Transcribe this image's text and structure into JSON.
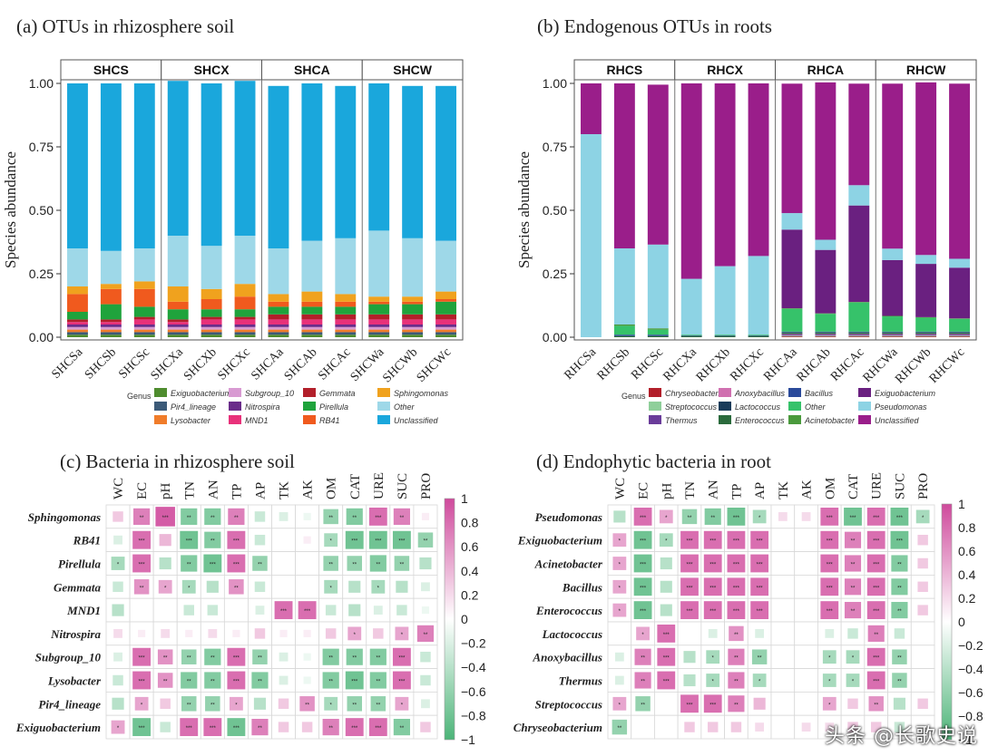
{
  "chart_data": [
    {
      "id": "a",
      "type": "bar",
      "stacked": true,
      "title": "(a) OTUs in rhizosphere soil",
      "ylabel": "Species abundance",
      "ylim": [
        0,
        1
      ],
      "yticks": [
        "0.00",
        "0.25",
        "0.50",
        "0.75",
        "1.00"
      ],
      "groups": [
        "SHCS",
        "SHCX",
        "SHCA",
        "SHCW"
      ],
      "categories": [
        "SHCSa",
        "SHCSb",
        "SHCSc",
        "SHCXa",
        "SHCXb",
        "SHCXc",
        "SHCAa",
        "SHCAb",
        "SHCAc",
        "SHCWa",
        "SHCWb",
        "SHCWc"
      ],
      "legend_title": "Genus",
      "series": [
        {
          "name": "Exiguobacterium",
          "color": "#4e8c2e",
          "values": [
            0.01,
            0.01,
            0.01,
            0.01,
            0.01,
            0.01,
            0.01,
            0.01,
            0.01,
            0.01,
            0.01,
            0.01
          ]
        },
        {
          "name": "Pir4_lineage",
          "color": "#3c5a78",
          "values": [
            0.01,
            0.01,
            0.01,
            0.01,
            0.01,
            0.01,
            0.01,
            0.01,
            0.01,
            0.01,
            0.01,
            0.01
          ]
        },
        {
          "name": "Lysobacter",
          "color": "#f07c2a",
          "values": [
            0.01,
            0.01,
            0.01,
            0.01,
            0.01,
            0.01,
            0.01,
            0.01,
            0.01,
            0.01,
            0.01,
            0.01
          ]
        },
        {
          "name": "Subgroup_10",
          "color": "#d89ad2",
          "values": [
            0.01,
            0.01,
            0.01,
            0.01,
            0.01,
            0.01,
            0.01,
            0.01,
            0.01,
            0.01,
            0.01,
            0.01
          ]
        },
        {
          "name": "Nitrospira",
          "color": "#6a2c8a",
          "values": [
            0.01,
            0.01,
            0.01,
            0.01,
            0.01,
            0.01,
            0.01,
            0.01,
            0.01,
            0.01,
            0.01,
            0.01
          ]
        },
        {
          "name": "MND1",
          "color": "#e8317a",
          "values": [
            0.01,
            0.01,
            0.02,
            0.01,
            0.02,
            0.02,
            0.02,
            0.02,
            0.02,
            0.02,
            0.02,
            0.02
          ]
        },
        {
          "name": "Gemmata",
          "color": "#b21f2a",
          "values": [
            0.01,
            0.01,
            0.01,
            0.01,
            0.01,
            0.01,
            0.02,
            0.02,
            0.02,
            0.02,
            0.02,
            0.02
          ]
        },
        {
          "name": "Pirellula",
          "color": "#1fa33c",
          "values": [
            0.03,
            0.06,
            0.04,
            0.04,
            0.03,
            0.03,
            0.03,
            0.03,
            0.03,
            0.04,
            0.04,
            0.05
          ]
        },
        {
          "name": "RB41",
          "color": "#f05a1e",
          "values": [
            0.07,
            0.06,
            0.07,
            0.03,
            0.04,
            0.05,
            0.02,
            0.02,
            0.02,
            0.01,
            0.01,
            0.01
          ]
        },
        {
          "name": "Sphingomonas",
          "color": "#f0a21e",
          "values": [
            0.03,
            0.02,
            0.03,
            0.06,
            0.04,
            0.05,
            0.03,
            0.04,
            0.03,
            0.02,
            0.02,
            0.03
          ]
        },
        {
          "name": "Other",
          "color": "#9ed8e8",
          "values": [
            0.15,
            0.13,
            0.13,
            0.2,
            0.17,
            0.19,
            0.18,
            0.2,
            0.22,
            0.26,
            0.23,
            0.2
          ]
        },
        {
          "name": "Unclassified",
          "color": "#1aa7dc",
          "values": [
            0.65,
            0.66,
            0.65,
            0.61,
            0.64,
            0.61,
            0.64,
            0.62,
            0.6,
            0.58,
            0.6,
            0.61
          ]
        }
      ]
    },
    {
      "id": "b",
      "type": "bar",
      "stacked": true,
      "title": "(b) Endogenous OTUs in roots",
      "ylabel": "Species abundance",
      "ylim": [
        0,
        1
      ],
      "yticks": [
        "0.00",
        "0.25",
        "0.50",
        "0.75",
        "1.00"
      ],
      "groups": [
        "RHCS",
        "RHCX",
        "RHCA",
        "RHCW"
      ],
      "categories": [
        "RHCSa",
        "RHCSb",
        "RHCSc",
        "RHCXa",
        "RHCXb",
        "RHCXc",
        "RHCAa",
        "RHCAb",
        "RHCAc",
        "RHCWa",
        "RHCWb",
        "RHCWc"
      ],
      "legend_title": "Genus",
      "series": [
        {
          "name": "Chryseobacterium",
          "color": "#b21f2a",
          "values": [
            0,
            0,
            0,
            0,
            0,
            0,
            0.003,
            0.003,
            0.003,
            0.003,
            0.003,
            0.003
          ]
        },
        {
          "name": "Streptococcus",
          "color": "#8fcf9a",
          "values": [
            0,
            0,
            0,
            0,
            0,
            0,
            0.003,
            0.003,
            0.003,
            0.003,
            0.003,
            0.003
          ]
        },
        {
          "name": "Thermus",
          "color": "#6a3c9a",
          "values": [
            0,
            0,
            0,
            0,
            0,
            0,
            0.003,
            0.003,
            0.003,
            0.003,
            0.003,
            0.003
          ]
        },
        {
          "name": "Anoxybacillus",
          "color": "#d070b0",
          "values": [
            0,
            0,
            0,
            0,
            0,
            0,
            0.003,
            0.003,
            0.003,
            0.003,
            0.003,
            0.003
          ]
        },
        {
          "name": "Lactococcus",
          "color": "#1a3c5a",
          "values": [
            0,
            0,
            0,
            0,
            0,
            0,
            0.003,
            0.003,
            0.003,
            0.003,
            0.003,
            0.003
          ]
        },
        {
          "name": "Enterococcus",
          "color": "#2a6a3c",
          "values": [
            0,
            0.005,
            0.005,
            0.005,
            0.005,
            0.005,
            0.004,
            0.004,
            0.004,
            0.004,
            0.004,
            0.004
          ]
        },
        {
          "name": "Bacillus",
          "color": "#2a4a9a",
          "values": [
            0,
            0.005,
            0.005,
            0.002,
            0.002,
            0.002,
            0.003,
            0.003,
            0.003,
            0.003,
            0.003,
            0.003
          ]
        },
        {
          "name": "Other",
          "color": "#36c26a",
          "values": [
            0,
            0.035,
            0.02,
            0.003,
            0.003,
            0.003,
            0.09,
            0.07,
            0.115,
            0.06,
            0.055,
            0.05
          ]
        },
        {
          "name": "Acinetobacter",
          "color": "#4a9a3c",
          "values": [
            0,
            0.005,
            0.005,
            0,
            0,
            0,
            0.002,
            0.002,
            0.002,
            0.002,
            0.002,
            0.002
          ]
        },
        {
          "name": "Exiguobacterium",
          "color": "#6a2080",
          "values": [
            0,
            0,
            0,
            0,
            0,
            0,
            0.31,
            0.25,
            0.38,
            0.22,
            0.21,
            0.2
          ]
        },
        {
          "name": "Pseudomonas",
          "color": "#8dd3e4",
          "values": [
            0.8,
            0.3,
            0.33,
            0.22,
            0.27,
            0.31,
            0.065,
            0.04,
            0.08,
            0.045,
            0.035,
            0.035
          ]
        },
        {
          "name": "Unclassified",
          "color": "#9a1e8a",
          "values": [
            0.2,
            0.65,
            0.63,
            0.77,
            0.72,
            0.68,
            0.51,
            0.62,
            0.4,
            0.65,
            0.68,
            0.69
          ]
        }
      ]
    },
    {
      "id": "c",
      "type": "heatmap",
      "title": "(c) Bacteria in rhizosphere soil",
      "columns": [
        "WC",
        "EC",
        "pH",
        "TN",
        "AN",
        "TP",
        "AP",
        "TK",
        "AK",
        "OM",
        "CAT",
        "URE",
        "SUC",
        "PRO"
      ],
      "rows": [
        "Sphingomonas",
        "RB41",
        "Pirellula",
        "Gemmata",
        "MND1",
        "Nitrospira",
        "Subgroup_10",
        "Lysobacter",
        "Pir4_lineage",
        "Exiguobacterium"
      ],
      "colorbar_ticks": [
        "1",
        "0.8",
        "0.6",
        "0.4",
        "0.2",
        "0",
        "−0.2",
        "−0.4",
        "−0.6",
        "−0.8",
        "−1"
      ],
      "values": [
        [
          0.3,
          0.7,
          0.9,
          -0.7,
          -0.7,
          0.7,
          -0.3,
          -0.2,
          -0.1,
          -0.6,
          -0.7,
          0.8,
          0.7,
          0.1
        ],
        [
          -0.2,
          0.8,
          0.4,
          -0.8,
          -0.7,
          0.8,
          -0.3,
          0.0,
          0.1,
          -0.5,
          -0.8,
          -0.8,
          -0.8,
          -0.6
        ],
        [
          -0.5,
          0.8,
          -0.4,
          -0.7,
          -0.8,
          0.8,
          -0.6,
          0.0,
          0.0,
          -0.6,
          -0.6,
          -0.7,
          -0.6,
          -0.4
        ],
        [
          -0.3,
          0.6,
          0.5,
          -0.5,
          -0.4,
          0.6,
          -0.3,
          0.0,
          0.0,
          -0.5,
          -0.4,
          -0.5,
          -0.4,
          -0.2
        ],
        [
          -0.4,
          0.0,
          0.0,
          -0.3,
          -0.3,
          0.0,
          -0.2,
          0.8,
          0.8,
          -0.3,
          -0.4,
          -0.2,
          -0.3,
          -0.1
        ],
        [
          0.2,
          0.1,
          0.2,
          0.1,
          0.2,
          0.1,
          0.3,
          0.1,
          0.1,
          0.3,
          0.5,
          0.3,
          0.5,
          0.7
        ],
        [
          -0.2,
          0.8,
          0.6,
          -0.6,
          -0.7,
          0.8,
          -0.6,
          -0.2,
          -0.1,
          -0.7,
          -0.7,
          -0.7,
          0.8,
          -0.3
        ],
        [
          -0.3,
          0.8,
          0.6,
          -0.7,
          -0.7,
          0.8,
          -0.7,
          -0.2,
          -0.1,
          -0.7,
          -0.8,
          -0.7,
          0.8,
          -0.3
        ],
        [
          -0.4,
          0.5,
          0.3,
          -0.6,
          -0.6,
          0.5,
          -0.4,
          0.3,
          0.6,
          -0.5,
          -0.6,
          -0.6,
          0.5,
          -0.2
        ],
        [
          0.5,
          -0.8,
          -0.3,
          0.8,
          0.8,
          -0.8,
          0.7,
          0.3,
          0.3,
          0.7,
          0.8,
          0.8,
          -0.7,
          0.3
        ]
      ]
    },
    {
      "id": "d",
      "type": "heatmap",
      "title": "(d) Endophytic bacteria in root",
      "columns": [
        "WC",
        "EC",
        "pH",
        "TN",
        "AN",
        "TP",
        "AP",
        "TK",
        "AK",
        "OM",
        "CAT",
        "URE",
        "SUC",
        "PRO"
      ],
      "rows": [
        "Pseudomonas",
        "Exiguobacterium",
        "Acinetobacter",
        "Bacillus",
        "Enterococcus",
        "Lactococcus",
        "Anoxybacillus",
        "Thermus",
        "Streptococcus",
        "Chryseobacterium"
      ],
      "colorbar_ticks": [
        "1",
        "0.8",
        "0.6",
        "0.4",
        "0.2",
        "0",
        "−0.2",
        "−0.4",
        "−0.6",
        "−0.8",
        "−1"
      ],
      "values": [
        [
          -0.4,
          0.8,
          0.5,
          -0.6,
          -0.7,
          -0.8,
          -0.5,
          0.2,
          0.2,
          0.8,
          -0.8,
          0.8,
          -0.8,
          -0.5
        ],
        [
          0.5,
          -0.8,
          -0.5,
          0.8,
          0.8,
          0.8,
          0.8,
          0.0,
          0.0,
          0.8,
          0.7,
          0.8,
          -0.8,
          0.3
        ],
        [
          0.5,
          -0.8,
          -0.4,
          0.8,
          0.8,
          0.8,
          0.8,
          0.0,
          0.0,
          0.8,
          0.7,
          0.8,
          -0.7,
          0.3
        ],
        [
          0.5,
          -0.8,
          -0.4,
          0.8,
          0.8,
          0.8,
          0.8,
          0.0,
          0.0,
          0.8,
          0.7,
          0.8,
          -0.7,
          0.3
        ],
        [
          0.5,
          -0.8,
          -0.4,
          0.8,
          0.8,
          0.8,
          0.8,
          0.0,
          0.0,
          0.8,
          0.7,
          0.8,
          -0.7,
          0.3
        ],
        [
          0.0,
          0.5,
          0.8,
          0.0,
          -0.2,
          0.6,
          -0.2,
          0.0,
          0.0,
          -0.2,
          -0.3,
          0.7,
          -0.3,
          0.0
        ],
        [
          -0.2,
          0.7,
          0.8,
          -0.4,
          -0.5,
          0.7,
          -0.6,
          0.0,
          0.0,
          -0.5,
          -0.5,
          0.8,
          -0.6,
          0.0
        ],
        [
          -0.2,
          0.7,
          0.8,
          -0.4,
          -0.5,
          0.7,
          -0.5,
          0.0,
          0.0,
          -0.5,
          -0.5,
          0.8,
          -0.6,
          0.0
        ],
        [
          0.5,
          -0.6,
          0.0,
          0.8,
          0.8,
          0.7,
          0.4,
          0.0,
          0.0,
          0.5,
          0.3,
          0.6,
          -0.4,
          0.3
        ],
        [
          -0.6,
          0.0,
          0.0,
          0.3,
          0.3,
          0.3,
          0.2,
          0.0,
          0.2,
          0.2,
          0.3,
          0.3,
          -0.3,
          0.0
        ]
      ]
    }
  ],
  "watermark": "头条 @长歌史说"
}
